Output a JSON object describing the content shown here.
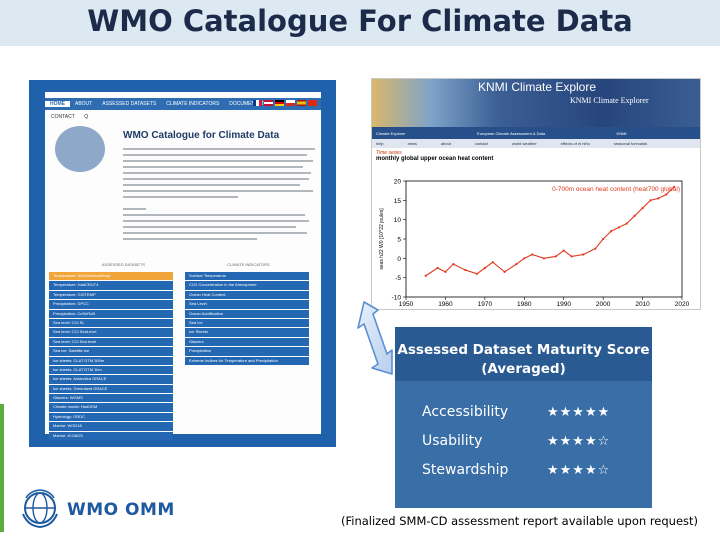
{
  "slide": {
    "title": "WMO Catalogue For Climate Data",
    "footnote": "(Finalized SMM-CD assessment report available upon request)",
    "footer_brand": "WMO OMM",
    "footer_logo_icon": "wmo-globe-emblem"
  },
  "wmo_page": {
    "nav_tabs": [
      "HOME",
      "ABOUT",
      "ASSESSED DATASETS",
      "CLIMATE INDICATORS",
      "DOCUMENTATION"
    ],
    "contact_links": [
      "CONTACT",
      "Q"
    ],
    "heading": "WMO Catalogue for Climate Data",
    "left_column_header": "ASSESSED DATASETS",
    "right_column_header": "CLIMATE INDICATORS",
    "left_list": [
      "Temperature: NOAAGlobalTemp",
      "Temperature: HadCRUT4",
      "Temperature: GISTEMP",
      "Precipitation: GPCC",
      "Precipitation: CoSeRoB",
      "Sea level: CCI SL",
      "Sea level: CCI SeaLevel",
      "Sea level: CCI Sea level",
      "Sea ice: Satellite Ice",
      "Ice sheets: CLAT DTM 300m",
      "Ice sheets: CLAT DTM 1km",
      "Ice sheets: Antarctica GRACE",
      "Ice sheets: Greenland GRACE",
      "Glaciers: WGMS",
      "Climate model: HadGEM",
      "Hydrology: GRDC",
      "Marine: WOD18",
      "Marine: ICOADS"
    ],
    "right_list": [
      "Surface Temperature",
      "CO2 Concentration in the Atmosphere",
      "Ocean Heat Content",
      "Sea Level",
      "Ocean Acidification",
      "Sea Ice",
      "Ice Sheets",
      "Glaciers",
      "Precipitation",
      "Extreme Indices for Temperature and Precipitation"
    ]
  },
  "knmi": {
    "overlay_title": "KNMI Climate Explore",
    "brand": "KNMI Climate Explorer",
    "menu": [
      "Climate Explorer",
      "European Climate Assessment & Data",
      "KNMI",
      ""
    ],
    "submenu": [
      "help",
      "news",
      "about",
      "contact",
      "world weather",
      "effects of el niño",
      "seasonal forecasts"
    ],
    "time_series_label": "Time series",
    "time_series_subtitle": "monthly global upper ocean heat content"
  },
  "chart_data": {
    "type": "line",
    "title": "",
    "xlabel": "",
    "ylabel": "seas h22 W0 [10^22 joules]",
    "legend_label": "0-700m ocean heat content (heat700 global)",
    "xlim": [
      1950,
      2020
    ],
    "ylim": [
      -10,
      20
    ],
    "xticks": [
      1950,
      1960,
      1970,
      1980,
      1990,
      2000,
      2010,
      2020
    ],
    "yticks": [
      -10,
      -5,
      0,
      5,
      10,
      15,
      20
    ],
    "series": [
      {
        "name": "0-700m ocean heat content (heat700 global)",
        "x": [
          1955,
          1958,
          1960,
          1962,
          1965,
          1968,
          1970,
          1972,
          1975,
          1978,
          1980,
          1982,
          1985,
          1988,
          1990,
          1992,
          1995,
          1998,
          2000,
          2002,
          2004,
          2006,
          2008,
          2010,
          2012,
          2014,
          2016,
          2018
        ],
        "y": [
          -4.5,
          -2.5,
          -3.5,
          -1.5,
          -3.0,
          -4.0,
          -2.5,
          -1.0,
          -3.5,
          -1.5,
          0.0,
          1.0,
          0.0,
          0.5,
          2.0,
          0.5,
          1.0,
          2.5,
          5.0,
          7.0,
          8.0,
          9.0,
          11.0,
          13.0,
          15.0,
          15.5,
          16.5,
          18.5
        ]
      }
    ],
    "grid": false,
    "color": "#e03a1e"
  },
  "maturity": {
    "title": "Assessed Dataset Maturity Score\n(Averaged)",
    "rows": [
      {
        "label": "Accessibility",
        "stars": "★★★★★",
        "rating": 5
      },
      {
        "label": "Usability",
        "stars": "★★★★☆",
        "rating": 4
      },
      {
        "label": "Stewardship",
        "stars": "★★★★☆",
        "rating": 4
      }
    ],
    "arrow_icon": "double-headed-arrow-icon"
  },
  "colors": {
    "title_band": "#dde9f2",
    "frame_blue": "#1f62ab",
    "card_blue": "#3a6ea7",
    "accent_green": "#5daa3d",
    "highlight_orange": "#f0a43a"
  }
}
